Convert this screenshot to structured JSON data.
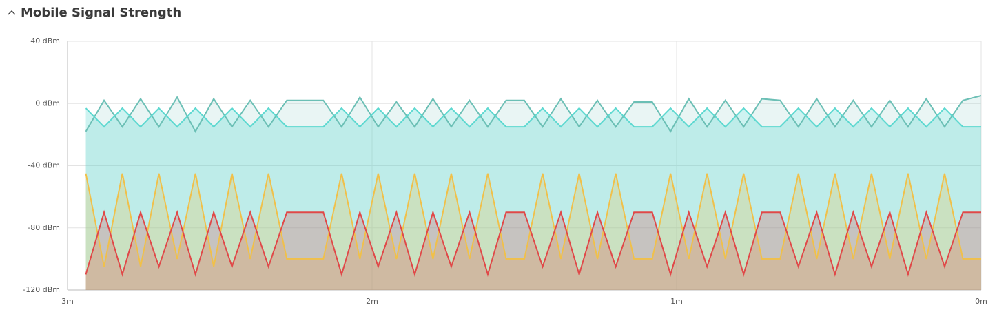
{
  "chart_data": {
    "type": "area",
    "title": "Mobile Signal Strength",
    "x": [
      2.94,
      2.88,
      2.82,
      2.76,
      2.7,
      2.64,
      2.58,
      2.52,
      2.46,
      2.4,
      2.34,
      2.28,
      2.22,
      2.16,
      2.1,
      2.04,
      1.98,
      1.92,
      1.86,
      1.8,
      1.74,
      1.68,
      1.62,
      1.56,
      1.5,
      1.44,
      1.38,
      1.32,
      1.26,
      1.2,
      1.14,
      1.08,
      1.02,
      0.96,
      0.9,
      0.84,
      0.78,
      0.72,
      0.66,
      0.6,
      0.54,
      0.48,
      0.42,
      0.36,
      0.3,
      0.24,
      0.18,
      0.12,
      0.06,
      0
    ],
    "xlim": [
      3,
      0
    ],
    "xticks": [
      {
        "value": 3,
        "label": "3m"
      },
      {
        "value": 2,
        "label": "2m"
      },
      {
        "value": 1,
        "label": "1m"
      },
      {
        "value": 0,
        "label": "0m"
      }
    ],
    "ylim": [
      -120,
      40
    ],
    "yticks": [
      {
        "value": -120,
        "label": "-120 dBm"
      },
      {
        "value": -80,
        "label": "-80 dBm"
      },
      {
        "value": -40,
        "label": "-40 dBm"
      },
      {
        "value": 0,
        "label": "0 dBm"
      },
      {
        "value": 40,
        "label": "40 dBm"
      }
    ],
    "grid": true,
    "series": [
      {
        "color": "#6bbfb5",
        "values": [
          -18,
          2,
          -15,
          3,
          -15,
          4,
          -18,
          3,
          -15,
          2,
          -15,
          2,
          2,
          2,
          -15,
          4,
          -15,
          1,
          -15,
          3,
          -15,
          2,
          -15,
          2,
          2,
          -15,
          3,
          -15,
          2,
          -15,
          1,
          1,
          -18,
          3,
          -15,
          2,
          -15,
          3,
          2,
          -15,
          3,
          -15,
          2,
          -15,
          2,
          -15,
          3,
          -15,
          2,
          5
        ]
      },
      {
        "color": "#5dd8d0",
        "values": [
          -3,
          -15,
          -3,
          -15,
          -3,
          -15,
          -3,
          -15,
          -3,
          -15,
          -3,
          -15,
          -15,
          -15,
          -3,
          -15,
          -3,
          -15,
          -3,
          -15,
          -3,
          -15,
          -3,
          -15,
          -15,
          -3,
          -15,
          -3,
          -15,
          -3,
          -15,
          -15,
          -3,
          -15,
          -3,
          -15,
          -3,
          -15,
          -15,
          -3,
          -15,
          -3,
          -15,
          -3,
          -15,
          -3,
          -15,
          -3,
          -15,
          -15
        ]
      },
      {
        "color": "#f0c04a",
        "values": [
          -45,
          -105,
          -45,
          -105,
          -45,
          -100,
          -45,
          -105,
          -45,
          -100,
          -45,
          -100,
          -100,
          -100,
          -45,
          -100,
          -45,
          -100,
          -45,
          -100,
          -45,
          -100,
          -45,
          -100,
          -100,
          -45,
          -100,
          -45,
          -100,
          -45,
          -100,
          -100,
          -45,
          -100,
          -45,
          -100,
          -45,
          -100,
          -100,
          -45,
          -100,
          -45,
          -100,
          -45,
          -100,
          -45,
          -100,
          -45,
          -100,
          -100
        ]
      },
      {
        "color": "#e04848",
        "values": [
          -110,
          -70,
          -110,
          -70,
          -105,
          -70,
          -110,
          -70,
          -105,
          -70,
          -105,
          -70,
          -70,
          -70,
          -110,
          -70,
          -105,
          -70,
          -110,
          -70,
          -105,
          -70,
          -110,
          -70,
          -70,
          -105,
          -70,
          -110,
          -70,
          -105,
          -70,
          -70,
          -110,
          -70,
          -105,
          -70,
          -110,
          -70,
          -70,
          -105,
          -70,
          -110,
          -70,
          -105,
          -70,
          -110,
          -70,
          -105,
          -70,
          -70
        ]
      }
    ]
  }
}
